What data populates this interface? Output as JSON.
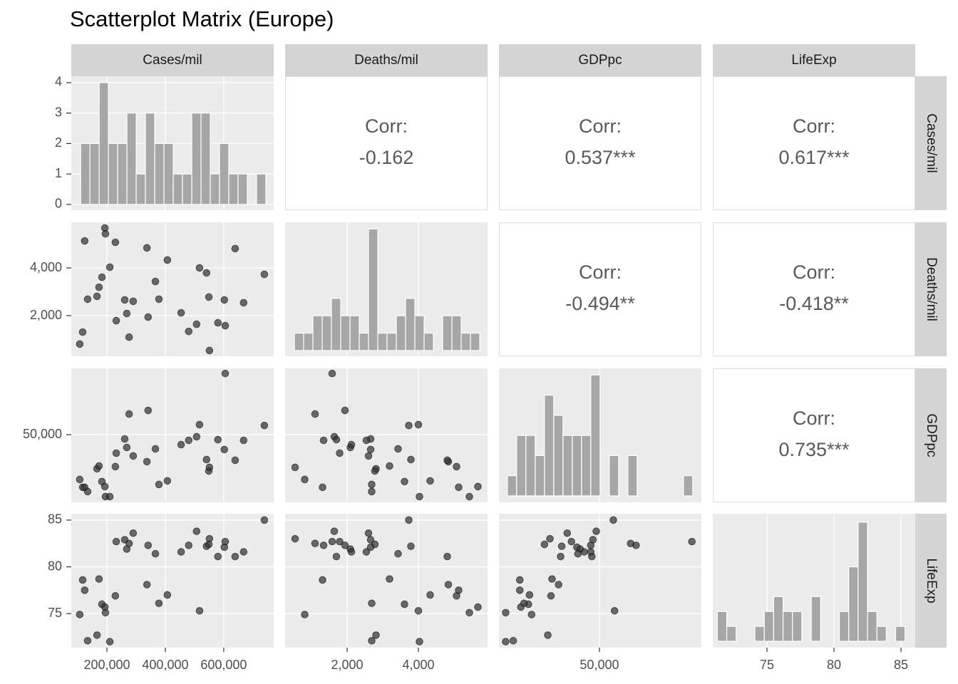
{
  "chart_data": {
    "type": "scatter_matrix",
    "title": "Scatterplot Matrix (Europe)",
    "corr_label": "Corr:",
    "count_ticks": [
      0,
      1,
      2,
      3,
      4
    ],
    "point_color": "#333333",
    "bar_color": "#a6a6a6",
    "grid": true,
    "variables": [
      {
        "name": "Cases/mil",
        "xlim": [
          78000,
          771000
        ],
        "ticks": [
          {
            "value": 200000,
            "label": "200,000"
          },
          {
            "value": 400000,
            "label": "400,000"
          },
          {
            "value": 600000,
            "label": "600,000"
          }
        ],
        "values": [
          107000,
          117000,
          124000,
          134000,
          166000,
          173000,
          183000,
          193000,
          195000,
          210000,
          229000,
          232000,
          261000,
          268000,
          276000,
          290000,
          337000,
          341000,
          366000,
          378000,
          407000,
          454000,
          480000,
          507000,
          517000,
          541000,
          549000,
          551000,
          580000,
          602000,
          605000,
          639000,
          668000,
          739000
        ],
        "hist": {
          "bins": [
            110000,
            141700,
            173400,
            205100,
            236800,
            268500,
            300200,
            331900,
            363600,
            395300,
            427000,
            458700,
            490400,
            522100,
            553800,
            585500,
            617200,
            648900,
            680600,
            712300,
            744000
          ],
          "counts": [
            2,
            2,
            4,
            2,
            2,
            3,
            1,
            3,
            2,
            2,
            1,
            1,
            3,
            3,
            1,
            2,
            1,
            1,
            0,
            1
          ],
          "ylim": [
            -0.19,
            4.21
          ]
        }
      },
      {
        "name": "Deaths/mil",
        "xlim": [
          260,
          5940
        ],
        "ylim": [
          300,
          5910
        ],
        "ticks": [
          {
            "value": 2000,
            "label": "2,000"
          },
          {
            "value": 4000,
            "label": "4,000"
          }
        ],
        "values": [
          810,
          1310,
          5130,
          2690,
          2810,
          3190,
          3610,
          5670,
          5430,
          4030,
          5070,
          1790,
          2660,
          2090,
          1100,
          2600,
          4840,
          1940,
          3430,
          2690,
          4330,
          2120,
          1340,
          1640,
          4000,
          3790,
          2780,
          540,
          1700,
          2660,
          1580,
          4810,
          2540,
          3730
        ],
        "hist": {
          "bins": [
            520,
            780,
            1040,
            1300,
            1560,
            1820,
            2080,
            2340,
            2600,
            2860,
            3120,
            3380,
            3640,
            3900,
            4160,
            4420,
            4680,
            4940,
            5200,
            5460,
            5720
          ],
          "counts": [
            1,
            1,
            2,
            2,
            3,
            2,
            2,
            1,
            7,
            1,
            1,
            2,
            3,
            2,
            1,
            0,
            2,
            2,
            1,
            1
          ],
          "ylim": [
            -0.33,
            7.38
          ]
        }
      },
      {
        "name": "GDPpc",
        "xlim": [
          2300,
          98400
        ],
        "ylim": [
          1400,
          97600
        ],
        "ticks": [
          {
            "value": 50000,
            "label": "50,000"
          }
        ],
        "values": [
          17800,
          12200,
          12200,
          9100,
          25500,
          27500,
          16300,
          12700,
          5500,
          5500,
          27000,
          36700,
          46900,
          40800,
          64800,
          34700,
          30600,
          67400,
          39800,
          14200,
          16800,
          42800,
          45900,
          48500,
          57200,
          32100,
          23900,
          26500,
          46400,
          39300,
          93900,
          31600,
          45900,
          56600
        ],
        "hist": {
          "bins": [
            6300,
            10700,
            15100,
            19500,
            23900,
            28300,
            32700,
            37100,
            41500,
            45900,
            50300,
            54700,
            59100,
            63500,
            67900,
            72300,
            76700,
            81100,
            85500,
            89900,
            94300
          ],
          "counts": [
            1,
            3,
            3,
            2,
            5,
            4,
            3,
            3,
            3,
            6,
            0,
            2,
            0,
            2,
            0,
            0,
            0,
            0,
            0,
            1
          ],
          "ylim": [
            -0.32,
            6.33
          ]
        }
      },
      {
        "name": "LifeExp",
        "xlim": [
          70.96,
          86.06
        ],
        "ylim": [
          71.36,
          85.68
        ],
        "ticks": [
          75,
          80,
          85
        ],
        "values": [
          74.9,
          78.6,
          77.5,
          72.1,
          72.7,
          78.7,
          76.0,
          75.7,
          75.1,
          72.0,
          76.9,
          82.7,
          82.9,
          81.9,
          82.5,
          83.6,
          78.1,
          82.3,
          81.4,
          76.1,
          77.0,
          81.6,
          82.3,
          83.8,
          75.3,
          82.2,
          82.4,
          83.0,
          81.1,
          82.1,
          82.7,
          81.1,
          81.6,
          85.0
        ],
        "hist": {
          "bins": [
            71.3,
            72,
            72.7,
            73.4,
            74.1,
            74.8,
            75.5,
            76.2,
            76.9,
            77.6,
            78.3,
            79,
            79.7,
            80.4,
            81.1,
            81.8,
            82.5,
            83.2,
            83.9,
            84.6,
            85.3
          ],
          "counts": [
            2,
            1,
            0,
            0,
            1,
            2,
            3,
            2,
            2,
            0,
            3,
            0,
            0,
            2,
            5,
            8,
            2,
            1,
            0,
            1
          ],
          "ylim": [
            -0.43,
            8.57
          ]
        }
      }
    ],
    "correlations": [
      {
        "value": -0.162,
        "label": "-0.162"
      },
      {
        "value": 0.537,
        "label": "0.537***"
      },
      {
        "value": 0.617,
        "label": "0.617***"
      },
      {
        "value": -0.494,
        "label": "-0.494**"
      },
      {
        "value": -0.418,
        "label": "-0.418**"
      },
      {
        "value": 0.735,
        "label": "0.735***"
      }
    ]
  }
}
